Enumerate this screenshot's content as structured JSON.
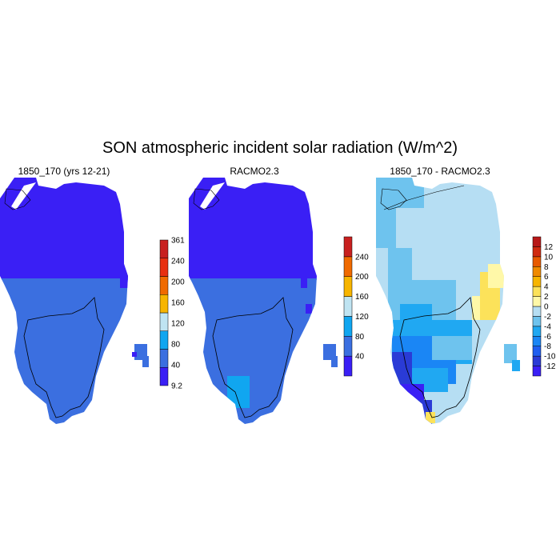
{
  "title": "SON atmospheric incident solar radiation (W/m^2)",
  "panels": [
    {
      "title": "1850_170 (yrs 12-21)"
    },
    {
      "title": "RACMO2.3"
    },
    {
      "title": "1850_170 - RACMO2.3"
    }
  ],
  "colorbars": [
    {
      "labels": [
        "9.2",
        "40",
        "80",
        "120",
        "160",
        "200",
        "240",
        "361"
      ],
      "colors": [
        "#3a1ff5",
        "#3b6fe0",
        "#10a6f0",
        "#bfe4f2",
        "#f7b500",
        "#f06a00",
        "#e83010",
        "#c8201f"
      ]
    },
    {
      "labels": [
        "40",
        "80",
        "120",
        "160",
        "200",
        "240"
      ],
      "colors": [
        "#3a1ff5",
        "#3b6fe0",
        "#10a6f0",
        "#bfe4f2",
        "#f7b500",
        "#f06a00",
        "#c8201f"
      ]
    },
    {
      "labels": [
        "-12",
        "-10",
        "-8",
        "-6",
        "-4",
        "-2",
        "0",
        "2",
        "4",
        "6",
        "8",
        "10",
        "12"
      ],
      "colors": [
        "#3a1ff5",
        "#2a3bd6",
        "#1f5ef0",
        "#1a86f5",
        "#20a8f2",
        "#6ec3ee",
        "#b6def3",
        "#fff8a8",
        "#fce25a",
        "#f7b500",
        "#f08a00",
        "#e85a00",
        "#d02a10",
        "#b81818"
      ]
    }
  ],
  "colors": {
    "north": "#3a1ff5",
    "south": "#3b6fe0",
    "south_hi": "#10a6f0",
    "diff_main": "#b6def3",
    "diff_mid": "#6ec3ee",
    "diff_neg": "#20a8f2",
    "diff_more": "#1a86f5",
    "diff_strong": "#2a3bd6",
    "diff_pos": "#fce25a"
  }
}
